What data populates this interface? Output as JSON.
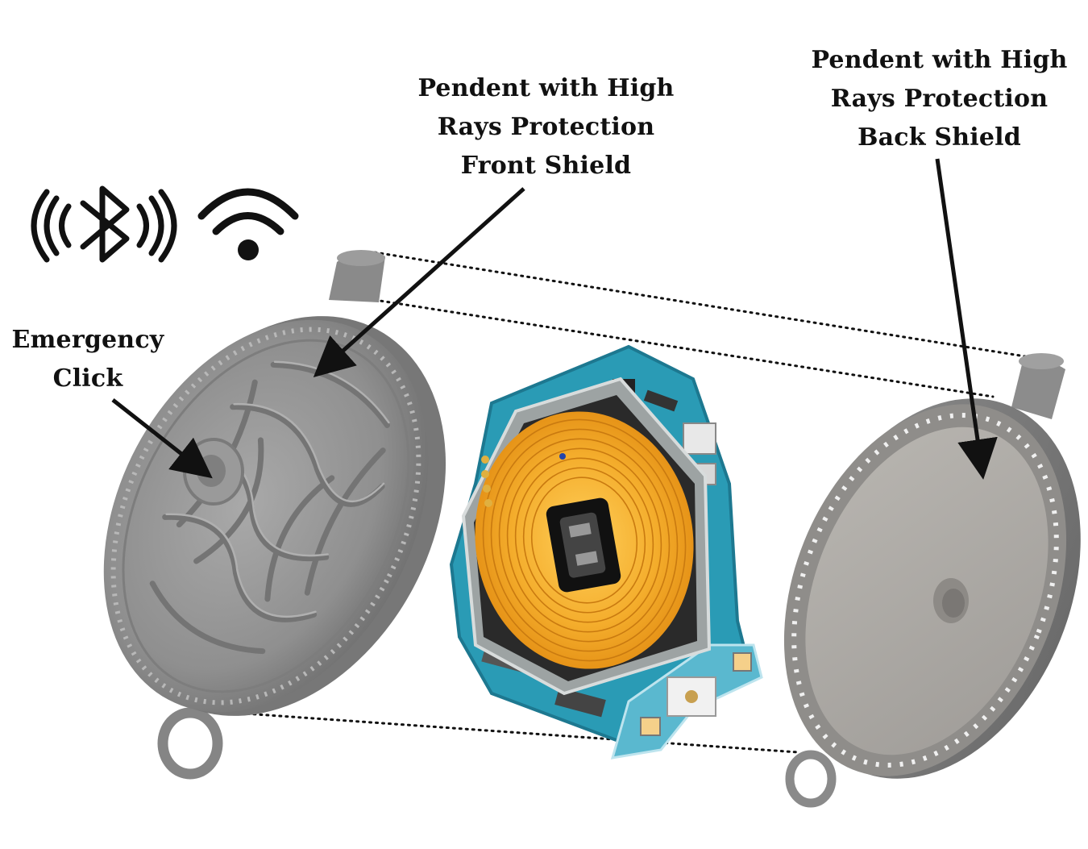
{
  "labels": {
    "front_shield": [
      "Pendent with High",
      "Rays Protection",
      "Front Shield"
    ],
    "back_shield": [
      "Pendent with High",
      "Rays Protection",
      "Back Shield"
    ],
    "emergency": [
      "Emergency",
      "Click"
    ]
  },
  "icons": [
    "bluetooth-icon",
    "wifi-icon"
  ],
  "colors": {
    "pendant_gray": "#8e8e8e",
    "pcb_teal": "#2a9bb5",
    "coil_orange": "#f0a020",
    "text": "#111111"
  }
}
